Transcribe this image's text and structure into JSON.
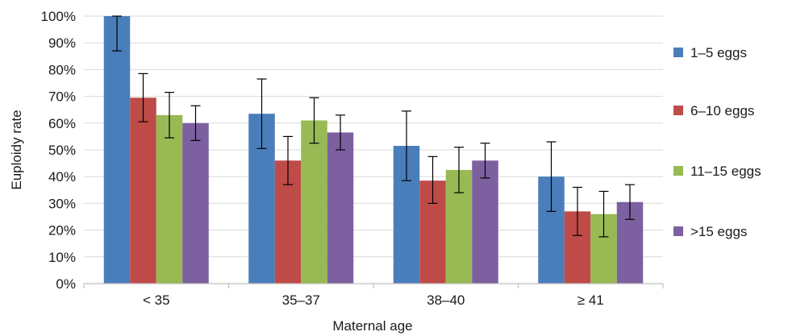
{
  "chart_data": {
    "type": "bar",
    "title": "",
    "xlabel": "Maternal age",
    "ylabel": "Euploidy rate",
    "categories": [
      "< 35",
      "35–37",
      "38–40",
      "≥ 41"
    ],
    "ylim": [
      0,
      100
    ],
    "y_ticks": [
      0,
      10,
      20,
      30,
      40,
      50,
      60,
      70,
      80,
      90,
      100
    ],
    "y_tick_labels": [
      "0%",
      "10%",
      "20%",
      "30%",
      "40%",
      "50%",
      "60%",
      "70%",
      "80%",
      "90%",
      "100%"
    ],
    "grid": true,
    "legend_position": "right",
    "series": [
      {
        "name": "1–5 eggs",
        "color": "#4A7EBB",
        "values": [
          100,
          63.5,
          51.5,
          40
        ],
        "err_low": [
          87,
          50.5,
          38.5,
          27
        ],
        "err_high": [
          100,
          76.5,
          64.5,
          53
        ]
      },
      {
        "name": "6–10 eggs",
        "color": "#BE4B48",
        "values": [
          69.5,
          46,
          38.5,
          27
        ],
        "err_low": [
          60.5,
          37,
          30,
          18
        ],
        "err_high": [
          78.5,
          55,
          47.5,
          36
        ]
      },
      {
        "name": "11–15 eggs",
        "color": "#98B954",
        "values": [
          63,
          61,
          42.5,
          26
        ],
        "err_low": [
          54.5,
          52.5,
          34,
          17.5
        ],
        "err_high": [
          71.5,
          69.5,
          51,
          34.5
        ]
      },
      {
        "name": ">15 eggs",
        "color": "#7D60A0",
        "values": [
          60,
          56.5,
          46,
          30.5
        ],
        "err_low": [
          53.5,
          50,
          39.5,
          24
        ],
        "err_high": [
          66.5,
          63,
          52.5,
          37
        ]
      }
    ]
  }
}
